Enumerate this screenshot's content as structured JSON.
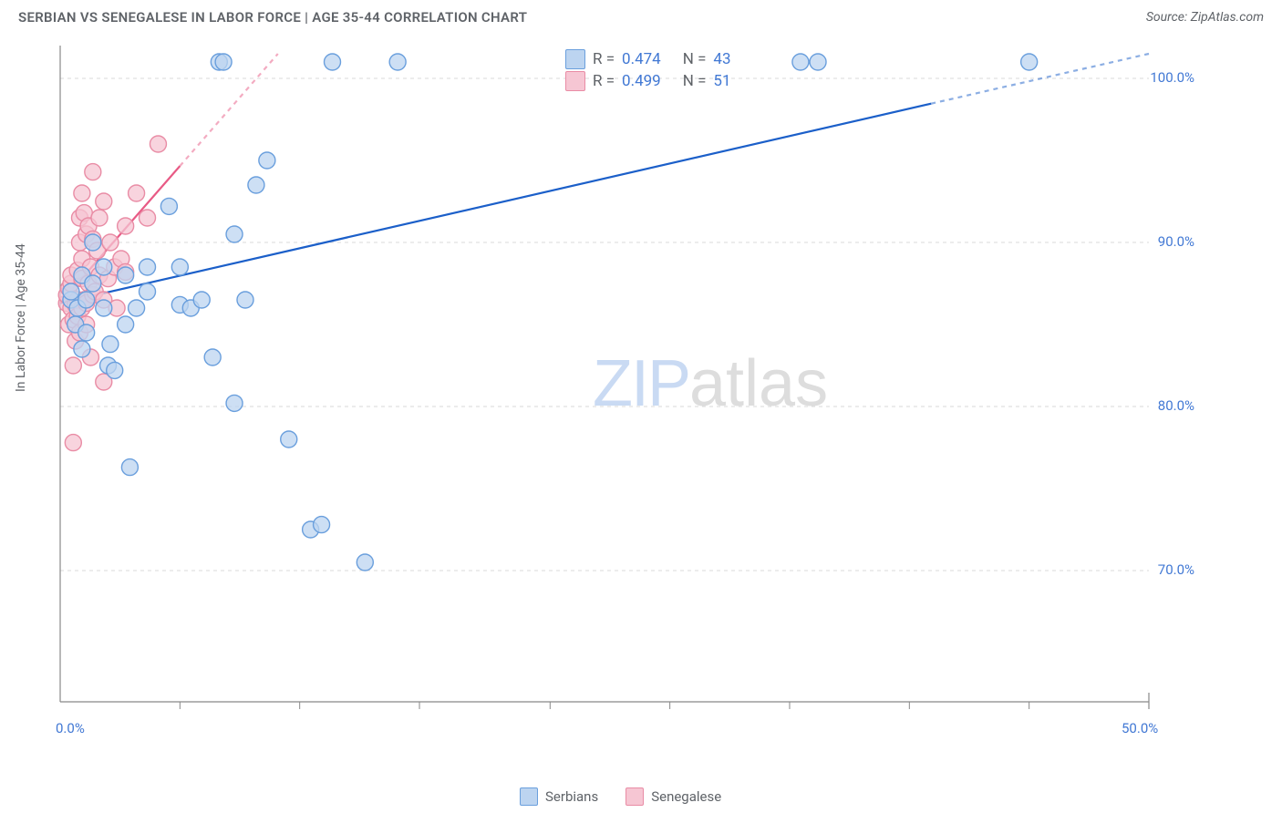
{
  "title": "SERBIAN VS SENEGALESE IN LABOR FORCE | AGE 35-44 CORRELATION CHART",
  "source_label": "Source: ZipAtlas.com",
  "y_axis_label": "In Labor Force | Age 35-44",
  "watermark": {
    "zip": "ZIP",
    "atlas": "atlas"
  },
  "chart": {
    "type": "scatter",
    "background_color": "#ffffff",
    "grid_color": "#d9d9d9",
    "xlim": [
      0,
      50
    ],
    "ylim": [
      62,
      102
    ],
    "x_ticks": [
      0,
      50
    ],
    "x_tick_labels": [
      "0.0%",
      "50.0%"
    ],
    "x_minor_ticks": [
      5.5,
      11,
      16.5,
      22.5,
      28,
      33.5,
      39,
      44.5
    ],
    "y_ticks": [
      70,
      80,
      90,
      100
    ],
    "y_tick_labels": [
      "70.0%",
      "80.0%",
      "90.0%",
      "100.0%"
    ],
    "marker_radius": 9,
    "marker_stroke_width": 1.4,
    "series": [
      {
        "name": "Serbians",
        "fill": "#bcd4f0",
        "stroke": "#6a9fdd",
        "fill_opacity": 0.75,
        "R": "0.474",
        "N": "43",
        "trend": {
          "x1": 0,
          "y1": 86.3,
          "x2": 50,
          "y2": 101.5,
          "dashed_after_x": 40,
          "color": "#1b5fc9",
          "width": 2.2
        },
        "points": [
          [
            0.5,
            86.5
          ],
          [
            0.5,
            87.0
          ],
          [
            0.7,
            85.0
          ],
          [
            0.8,
            86.0
          ],
          [
            1.0,
            88.0
          ],
          [
            1.0,
            83.5
          ],
          [
            1.2,
            84.5
          ],
          [
            1.2,
            86.5
          ],
          [
            1.5,
            87.5
          ],
          [
            1.5,
            90.0
          ],
          [
            2.0,
            86.0
          ],
          [
            2.0,
            88.5
          ],
          [
            2.2,
            82.5
          ],
          [
            2.3,
            83.8
          ],
          [
            2.5,
            82.2
          ],
          [
            3.0,
            85.0
          ],
          [
            3.0,
            88.0
          ],
          [
            3.2,
            76.3
          ],
          [
            3.5,
            86.0
          ],
          [
            4.0,
            88.5
          ],
          [
            4.0,
            87.0
          ],
          [
            5.0,
            92.2
          ],
          [
            5.5,
            88.5
          ],
          [
            5.5,
            86.2
          ],
          [
            6.0,
            86.0
          ],
          [
            6.5,
            86.5
          ],
          [
            7.0,
            83.0
          ],
          [
            7.3,
            101.0
          ],
          [
            7.5,
            101.0
          ],
          [
            8.0,
            80.2
          ],
          [
            8.0,
            90.5
          ],
          [
            8.5,
            86.5
          ],
          [
            9.0,
            93.5
          ],
          [
            9.5,
            95.0
          ],
          [
            10.5,
            78.0
          ],
          [
            11.5,
            72.5
          ],
          [
            12.0,
            72.8
          ],
          [
            12.5,
            101.0
          ],
          [
            14.0,
            70.5
          ],
          [
            15.5,
            101.0
          ],
          [
            34.0,
            101.0
          ],
          [
            34.8,
            101.0
          ],
          [
            44.5,
            101.0
          ]
        ]
      },
      {
        "name": "Senegalese",
        "fill": "#f6c6d3",
        "stroke": "#e98ca5",
        "fill_opacity": 0.75,
        "R": "0.499",
        "N": "51",
        "trend": {
          "x1": 0,
          "y1": 86.3,
          "x2": 10,
          "y2": 101.5,
          "dashed_after_x": 5.5,
          "color": "#e85a85",
          "width": 2.2
        },
        "points": [
          [
            0.3,
            86.3
          ],
          [
            0.3,
            86.8
          ],
          [
            0.4,
            85.0
          ],
          [
            0.4,
            87.2
          ],
          [
            0.5,
            86.0
          ],
          [
            0.5,
            87.5
          ],
          [
            0.5,
            88.0
          ],
          [
            0.6,
            82.5
          ],
          [
            0.6,
            85.3
          ],
          [
            0.7,
            86.2
          ],
          [
            0.7,
            84.0
          ],
          [
            0.8,
            85.5
          ],
          [
            0.8,
            86.5
          ],
          [
            0.8,
            88.3
          ],
          [
            0.9,
            90.0
          ],
          [
            0.9,
            91.5
          ],
          [
            0.9,
            84.5
          ],
          [
            1.0,
            86.0
          ],
          [
            1.0,
            87.8
          ],
          [
            1.0,
            89.0
          ],
          [
            1.1,
            86.5
          ],
          [
            1.1,
            91.8
          ],
          [
            1.2,
            85.0
          ],
          [
            1.2,
            86.3
          ],
          [
            1.2,
            90.5
          ],
          [
            1.3,
            87.5
          ],
          [
            1.3,
            91.0
          ],
          [
            1.4,
            83.0
          ],
          [
            1.4,
            88.5
          ],
          [
            1.5,
            86.8
          ],
          [
            1.5,
            90.2
          ],
          [
            1.5,
            94.3
          ],
          [
            1.6,
            87.0
          ],
          [
            1.7,
            89.5
          ],
          [
            1.8,
            88.0
          ],
          [
            1.8,
            91.5
          ],
          [
            2.0,
            81.5
          ],
          [
            2.0,
            86.5
          ],
          [
            2.0,
            92.5
          ],
          [
            2.2,
            87.8
          ],
          [
            2.3,
            90.0
          ],
          [
            2.5,
            88.5
          ],
          [
            2.6,
            86.0
          ],
          [
            2.8,
            89.0
          ],
          [
            3.0,
            88.2
          ],
          [
            3.0,
            91.0
          ],
          [
            3.5,
            93.0
          ],
          [
            4.0,
            91.5
          ],
          [
            4.5,
            96.0
          ],
          [
            0.6,
            77.8
          ],
          [
            1.0,
            93.0
          ]
        ]
      }
    ],
    "legend_labels": {
      "series1": "Serbians",
      "series2": "Senegalese"
    },
    "stats_labels": {
      "r_prefix": "R =",
      "n_prefix": "N ="
    }
  }
}
